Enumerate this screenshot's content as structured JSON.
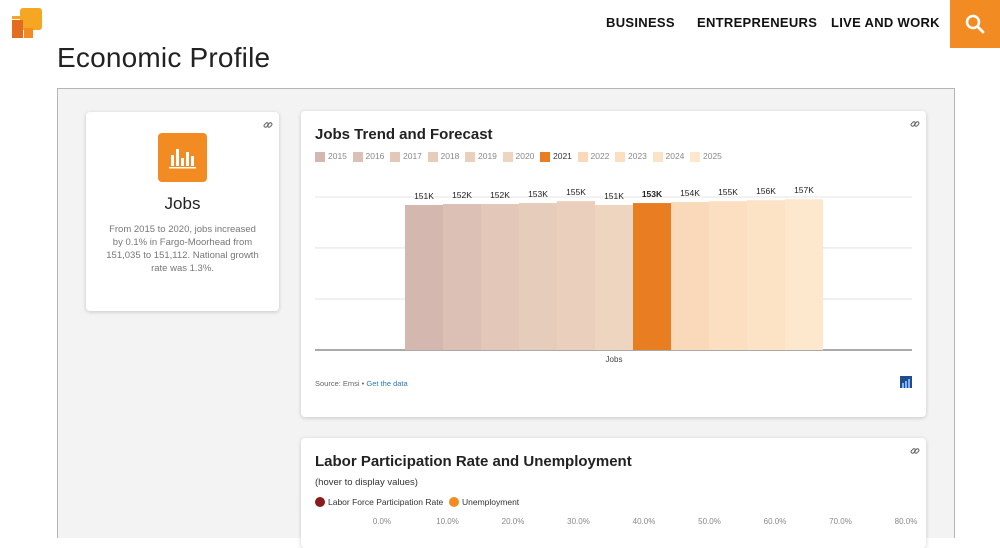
{
  "header": {
    "nav": [
      {
        "label": "BUSINESS"
      },
      {
        "label": "ENTREPRENEURS"
      },
      {
        "label": "LIVE AND WORK"
      }
    ],
    "accent_color": "#f28c22"
  },
  "page_title": "Economic Profile",
  "jobs_card": {
    "title": "Jobs",
    "description": "From 2015 to 2020, jobs increased by 0.1% in Fargo-Moorhead from 151,035 to 151,112. National growth rate was 1.3%.",
    "icon": "bar-chart-icon"
  },
  "jobs_chart": {
    "title": "Jobs Trend and Forecast",
    "source_prefix": "Source: Emsi • ",
    "source_link": "Get the data",
    "chart_data": {
      "type": "bar",
      "xlabel": "Jobs",
      "ylabel": "",
      "legend_position": "top",
      "grid": true,
      "ylim": [
        0,
        160000
      ],
      "categories": [
        "Jobs"
      ],
      "series": [
        {
          "name": "2015",
          "value": 151000,
          "label": "151K",
          "color": "#d4b8b0"
        },
        {
          "name": "2016",
          "value": 152000,
          "label": "152K",
          "color": "#dcc0b5"
        },
        {
          "name": "2017",
          "value": 152000,
          "label": "152K",
          "color": "#e3c7b9"
        },
        {
          "name": "2018",
          "value": 153000,
          "label": "153K",
          "color": "#e6ccbb"
        },
        {
          "name": "2019",
          "value": 155000,
          "label": "155K",
          "color": "#ead0bc"
        },
        {
          "name": "2020",
          "value": 151000,
          "label": "151K",
          "color": "#eed5bf"
        },
        {
          "name": "2021",
          "value": 153000,
          "label": "153K",
          "color": "#e87d22",
          "highlight": true
        },
        {
          "name": "2022",
          "value": 154000,
          "label": "154K",
          "color": "#f9d9b9"
        },
        {
          "name": "2023",
          "value": 155000,
          "label": "155K",
          "color": "#fbdfc0"
        },
        {
          "name": "2024",
          "value": 156000,
          "label": "156K",
          "color": "#fce3c6"
        },
        {
          "name": "2025",
          "value": 157000,
          "label": "157K",
          "color": "#fde8cd"
        }
      ]
    }
  },
  "labor_chart": {
    "title": "Labor Participation Rate and Unemployment",
    "subtitle": "(hover to display values)",
    "legend": [
      {
        "name": "Labor Force Participation Rate",
        "color": "#8b1a1a"
      },
      {
        "name": "Unemployment",
        "color": "#f28c22"
      }
    ],
    "axis_ticks": [
      "0.0%",
      "10.0%",
      "20.0%",
      "30.0%",
      "40.0%",
      "50.0%",
      "60.0%",
      "70.0%",
      "80.0%"
    ]
  }
}
